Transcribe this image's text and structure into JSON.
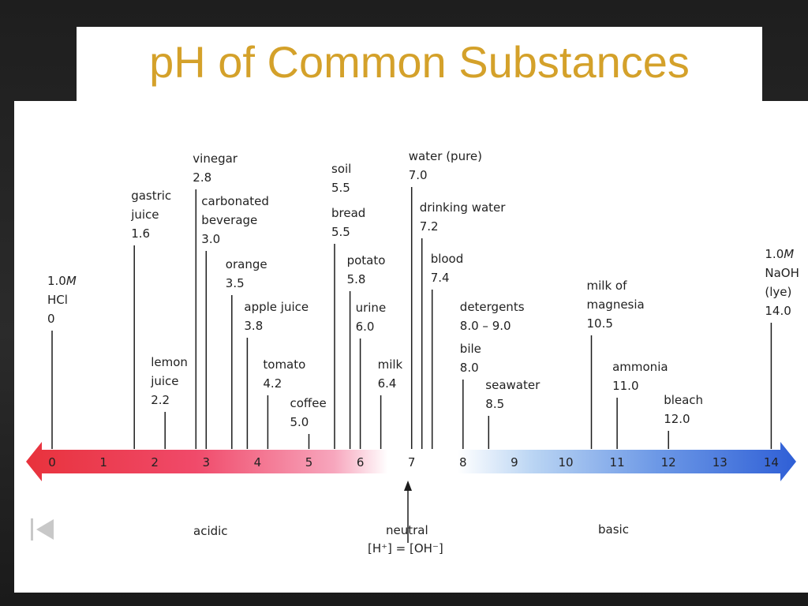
{
  "title": "pH of Common Substances",
  "scale": {
    "min": 0,
    "max": 14,
    "ticks": [
      "0",
      "1",
      "2",
      "3",
      "4",
      "5",
      "6",
      "7",
      "8",
      "9",
      "10",
      "11",
      "12",
      "13",
      "14"
    ],
    "acid_color": "#e8323c",
    "base_color": "#2f5fd6"
  },
  "substances": [
    {
      "id": "hcl",
      "lines": [
        "1.0M",
        "HCl",
        "0"
      ],
      "ph": 0
    },
    {
      "id": "gastric-juice",
      "lines": [
        "gastric",
        "juice",
        "1.6"
      ],
      "ph": 1.6
    },
    {
      "id": "lemon-juice",
      "lines": [
        "lemon",
        "juice",
        "2.2"
      ],
      "ph": 2.2
    },
    {
      "id": "vinegar",
      "lines": [
        "vinegar",
        "2.8"
      ],
      "ph": 2.8
    },
    {
      "id": "carbonated-beverage",
      "lines": [
        "carbonated",
        "beverage",
        "3.0"
      ],
      "ph": 3.0
    },
    {
      "id": "orange",
      "lines": [
        "orange",
        "3.5"
      ],
      "ph": 3.5
    },
    {
      "id": "apple-juice",
      "lines": [
        "apple juice",
        "3.8"
      ],
      "ph": 3.8
    },
    {
      "id": "tomato",
      "lines": [
        "tomato",
        "4.2"
      ],
      "ph": 4.2
    },
    {
      "id": "coffee",
      "lines": [
        "coffee",
        "5.0"
      ],
      "ph": 5.0
    },
    {
      "id": "soil",
      "lines": [
        "soil",
        "5.5"
      ],
      "ph": 5.5
    },
    {
      "id": "bread",
      "lines": [
        "bread",
        "5.5"
      ],
      "ph": 5.5
    },
    {
      "id": "potato",
      "lines": [
        "potato",
        "5.8"
      ],
      "ph": 5.8
    },
    {
      "id": "urine",
      "lines": [
        "urine",
        "6.0"
      ],
      "ph": 6.0
    },
    {
      "id": "milk",
      "lines": [
        "milk",
        "6.4"
      ],
      "ph": 6.4
    },
    {
      "id": "water-pure",
      "lines": [
        "water (pure)",
        "7.0"
      ],
      "ph": 7.0
    },
    {
      "id": "drinking-water",
      "lines": [
        "drinking water",
        "7.2"
      ],
      "ph": 7.2
    },
    {
      "id": "blood",
      "lines": [
        "blood",
        "7.4"
      ],
      "ph": 7.4
    },
    {
      "id": "detergents",
      "lines": [
        "detergents",
        "8.0 – 9.0"
      ],
      "ph": 8.0
    },
    {
      "id": "bile",
      "lines": [
        "bile",
        "8.0"
      ],
      "ph": 8.0
    },
    {
      "id": "seawater",
      "lines": [
        "seawater",
        "8.5"
      ],
      "ph": 8.5
    },
    {
      "id": "milk-of-magnesia",
      "lines": [
        "milk of",
        "magnesia",
        "10.5"
      ],
      "ph": 10.5
    },
    {
      "id": "ammonia",
      "lines": [
        "ammonia",
        "11.0"
      ],
      "ph": 11.0
    },
    {
      "id": "bleach",
      "lines": [
        "bleach",
        "12.0"
      ],
      "ph": 12.0
    },
    {
      "id": "naoh",
      "lines": [
        "1.0M",
        "NaOH",
        "(lye)",
        "14.0"
      ],
      "ph": 14.0
    }
  ],
  "regions": {
    "acidic": "acidic",
    "neutral": "neutral",
    "neutral_eq": "[H⁺] = [OH⁻]",
    "basic": "basic"
  },
  "nav": {
    "prev_icon": "skip-back-icon"
  }
}
